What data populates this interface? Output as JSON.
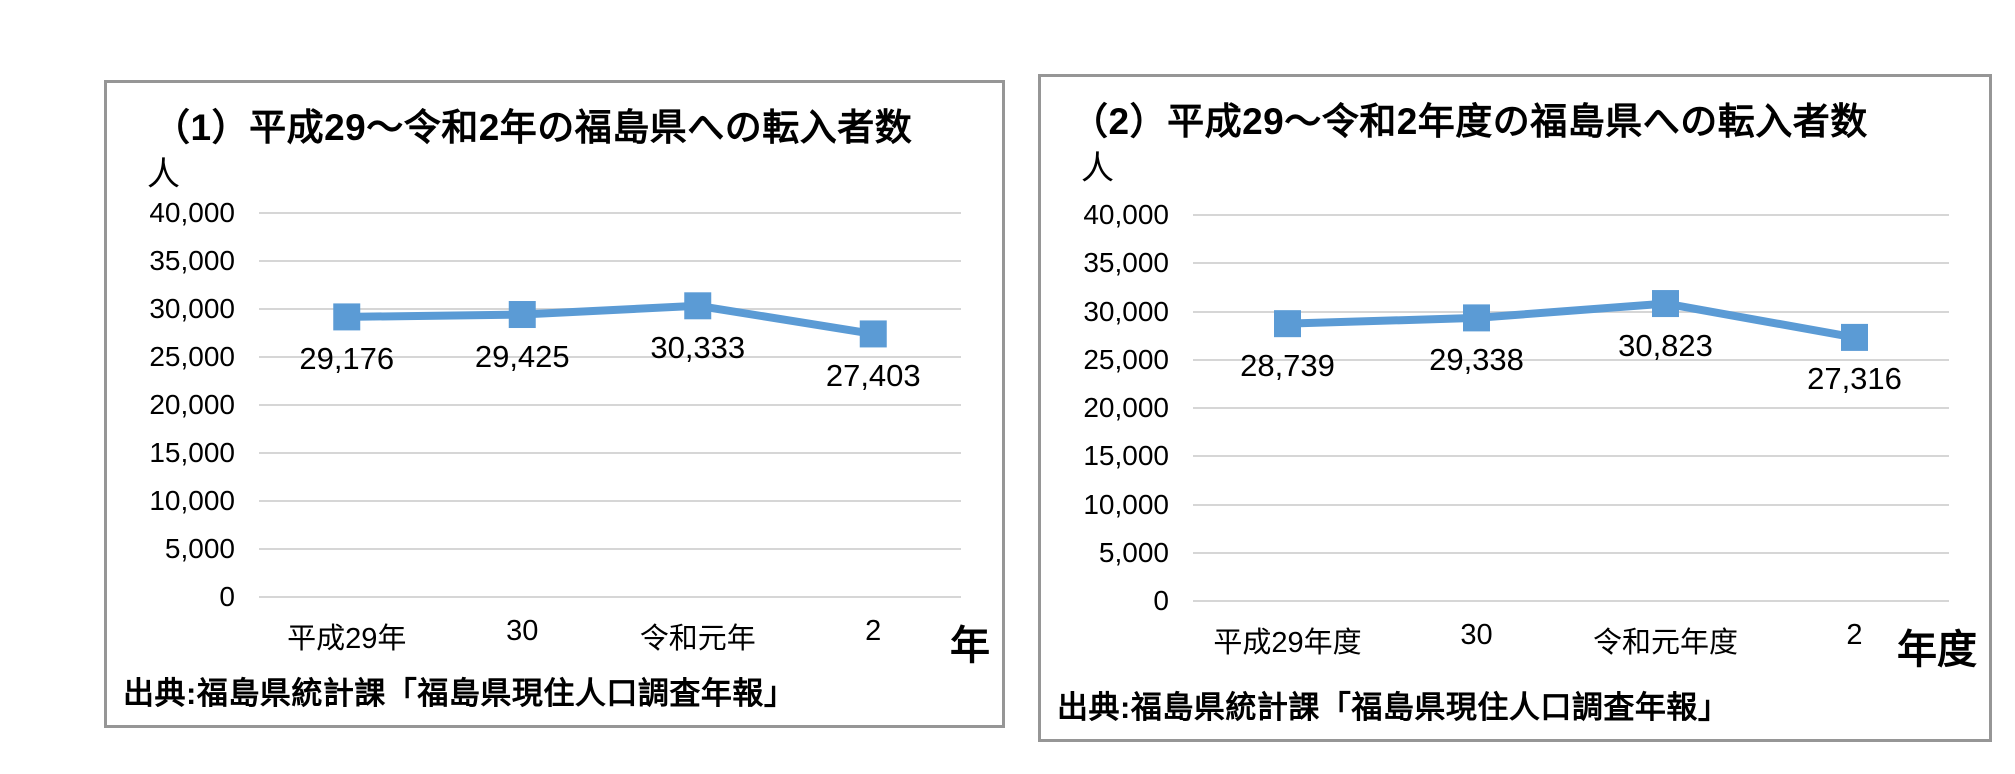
{
  "chart_data": [
    {
      "type": "line",
      "title": "（1）平成29～令和2年の福島県への転入者数",
      "y_unit": "人",
      "x_unit": "年",
      "categories": [
        "平成29年",
        "30",
        "令和元年",
        "2"
      ],
      "values": [
        29176,
        29425,
        30333,
        27403
      ],
      "data_labels": [
        "29,176",
        "29,425",
        "30,333",
        "27,403"
      ],
      "ylim": [
        0,
        40000
      ],
      "ytick_step": 5000,
      "ytick_labels": [
        "40,000",
        "35,000",
        "30,000",
        "25,000",
        "20,000",
        "15,000",
        "10,000",
        "5,000",
        "0"
      ],
      "grid": true,
      "legend": "none",
      "marker": "square",
      "line_color": "#5B9BD5",
      "gridline_color": "#D6D6D6",
      "source": "出典:福島県統計課「福島県現住人口調査年報」"
    },
    {
      "type": "line",
      "title": "（2）平成29～令和2年度の福島県への転入者数",
      "y_unit": "人",
      "x_unit": "年度",
      "categories": [
        "平成29年度",
        "30",
        "令和元年度",
        "2"
      ],
      "values": [
        28739,
        29338,
        30823,
        27316
      ],
      "data_labels": [
        "28,739",
        "29,338",
        "30,823",
        "27,316"
      ],
      "ylim": [
        0,
        40000
      ],
      "ytick_step": 5000,
      "ytick_labels": [
        "40,000",
        "35,000",
        "30,000",
        "25,000",
        "20,000",
        "15,000",
        "10,000",
        "5,000",
        "0"
      ],
      "grid": true,
      "legend": "none",
      "marker": "square",
      "line_color": "#5B9BD5",
      "gridline_color": "#D6D6D6",
      "source": "出典:福島県統計課「福島県現住人口調査年報」"
    }
  ]
}
